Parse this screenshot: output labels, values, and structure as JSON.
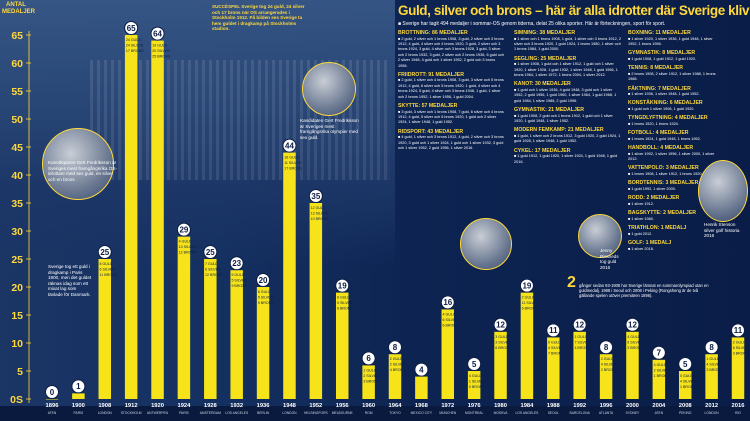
{
  "chart_data": {
    "type": "bar",
    "ylabel": "ANTAL MEDALJER",
    "ylim": [
      0,
      65
    ],
    "yticks": [
      0,
      5,
      10,
      15,
      20,
      25,
      30,
      35,
      40,
      45,
      50,
      55,
      60,
      65
    ],
    "categories": [
      "1896 ATEN",
      "1900 PARIS",
      "1908 LONDON",
      "1912 STOCKHOLM",
      "1920 ANTWERPEN",
      "1924 PARIS",
      "1928 AMSTERDAM",
      "1932 LOS ANGELES",
      "1936 BERLIN",
      "1948 LONDON",
      "1952 HELSINGFORS",
      "1956 MELBOURNE",
      "1960 ROM",
      "1964 TOKYO",
      "1968 MEXICO CITY",
      "1972 MÜNCHEN",
      "1976 MONTREAL",
      "1980 MOSKVA",
      "1984 LOS ANGELES",
      "1988 SEOUL",
      "1992 BARCELONA",
      "1996 ATLANTA",
      "2000 SYDNEY",
      "2004 ATEN",
      "2008 PEKING",
      "2012 LONDON",
      "2016 RIO"
    ],
    "values": [
      0,
      1,
      25,
      65,
      64,
      29,
      25,
      23,
      20,
      44,
      35,
      19,
      6,
      8,
      4,
      16,
      5,
      12,
      19,
      11,
      12,
      8,
      12,
      7,
      5,
      8,
      11
    ],
    "breakdown": [
      "0 GULD 0 SILVER 0 BRONS",
      "0 GULD 0 SILVER 1 BRONS",
      "8 GULD 6 SILVER 11 BRONS",
      "24 GULD 24 SILVER 17 BRONS",
      "19 GULD 20 SILVER 25 BRONS",
      "4 GULD 13 SILVER 12 BRONS",
      "7 GULD 6 SILVER 12 BRONS",
      "9 GULD 5 SILVER 9 BRONS",
      "6 GULD 5 SILVER 9 BRONS",
      "16 GULD 11 SILVER 17 BRONS",
      "12 GULD 13 SILVER 10 BRONS",
      "8 GULD 5 SILVER 6 BRONS",
      "1 GULD 2 SILVER 3 BRONS",
      "2 GULD 2 SILVER 4 BRONS",
      "2 GULD 1 SILVER 1 BRONS",
      "4 GULD 6 SILVER 6 BRONS",
      "4 GULD 1 SILVER 0 BRONS",
      "3 GULD 3 SILVER 6 BRONS",
      "2 GULD 11 SILVER 6 BRONS",
      "0 GULD 4 SILVER 7 BRONS",
      "1 GULD 7 SILVER 4 BRONS",
      "2 GULD 4 SILVER 2 BRONS",
      "4 GULD 5 SILVER 3 BRONS",
      "4 GULD 2 SILVER 1 BRONS",
      "0 GULD 4 SILVER 1 BRONS",
      "1 GULD 4 SILVER 3 BRONS",
      "2 GULD 6 SILVER 3 BRONS"
    ],
    "bar_color": "#f6e31a",
    "grid": false
  },
  "title": "Guld, silver och brons – här är alla idrotter där Sverige klivit upp på pallen genom åren",
  "subtitle": "■ Sverige har tagit 494 medaljer i sommar-OS genom tiderna, delat 25 olika sporter. Här är förteckningen, sport för sport.",
  "captions": {
    "top": "SUCCÉSPEL Sverige tog 24 guld, 24 silver och 17 brons när OS arrangerades i Stockholm 1912. På bilden ses Sverige ta hem guldet i dragkamp på Stockholms stadion.",
    "left1": "Kanotlöparen Gert Fredriksson är Sveriges mest framgångsrika OS-idrottare med sex guld, en silver och en brons.",
    "left2": "Sverige tog ett guld i dragkamp i Paris 1900, men det guldet räknas idag som ett mixat lag som tävlade för Danmark.",
    "mid": "Kandidaten Gert Fredriksson är Sveriges mest framgångsrika olympier med sex guld.",
    "jenny": "Jenny Rissveds tog guld 2016",
    "henrik": "Henrik Stenson silver golf historia 2016"
  },
  "sections_col1": [
    {
      "h": "BROTTNING: 86 MEDALJER",
      "p": "■ 2 guld, 2 silver och 1 brons 1908, 3 guld, 2 silver och 3 brons 1912, 4 guld, 4 silver och 4 brons 1920, 3 guld, 2 silver och 3 brons 1924, 3 guld, 4 silver och 3 brons 1928, 3 guld, 3 silver och 2 brons 1932, 3 guld, 2 silver och 2 brons 1936, 6 guld och 2 silver 1948, 4 guld och 1 silver 1952, 2 guld och 3 brons 1956."
    },
    {
      "h": "FRIIDROTT: 91 MEDALJER",
      "p": "■ 2 guld, 1 silver och 4 brons 1908, 3 guld, 3 silver och 5 brons 1912, 4 guld, 6 silver och 5 brons 1920, 1 guld, 4 silver och 4 brons 1924, 5 guld, 4 silver och 3 brons 1948, 1 guld, 1 silver och 2 brons 1952, 1 silver 1956, 1 guld 2004."
    },
    {
      "h": "SKYTTE: 57 MEDALJER",
      "p": "■ 3 guld, 3 silver och 1 brons 1908, 7 guld, 6 silver och 4 brons 1912, 4 guld, 5 silver och 6 brons 1920, 1 guld och 2 silver 1924, 1 silver 1948, 1 guld 1952."
    },
    {
      "h": "RIDSPORT: 43 MEDALJER",
      "p": "■ 4 guld, 1 silver och 3 brons 1912, 4 guld, 2 silver och 3 brons 1920, 3 guld och 1 silver 1924, 1 guld och 1 silver 1932, 3 guld och 1 silver 1952, 2 guld 1956, 1 silver 2016."
    }
  ],
  "sections_col2": [
    {
      "h": "SIMNING: 38 MEDALJER",
      "p": "■ 1 silver och 1 brons 1908, 1 guld, 1 silver och 3 brons 1912, 2 silver och 3 brons 1920, 1 guld 1924, 1 brons 1980, 1 silver och 1 brons 1984, 1 guld 2000."
    },
    {
      "h": "SEGLING: 25 MEDALJER",
      "p": "■ 1 silver 1908, 1 guld och 1 silver 1912, 1 guld och 1 silver 1920, 1 silver 1928, 1 guld 1932, 1 silver 1948, 1 guld 1956, 1 brons 1964, 1 silver 1972, 1 brons 2004, 1 silver 2012."
    },
    {
      "h": "KANOT: 30 MEDALJER",
      "p": "■ 1 guld och 1 silver 1936, 4 guld 1948, 3 guld och 1 silver 1952, 2 guld 1956, 1 guld 1960, 1 silver 1964, 1 guld 1968, 1 guld 1984, 1 silver 1988, 2 guld 1996."
    },
    {
      "h": "GYMNASTIK: 21 MEDALJER",
      "p": "■ 1 guld 1908, 2 guld och 1 brons 1912, 1 guld och 1 silver 1920, 1 guld 1948, 1 silver 1952."
    },
    {
      "h": "MODERN FEMKAMP: 21 MEDALJER",
      "p": "■ 1 guld, 1 silver och 2 brons 1912, 3 guld 1920, 2 guld 1924, 1 guld 1928, 1 silver 1948, 1 guld 1952."
    },
    {
      "h": "CYKEL: 17 MEDALJER",
      "p": "■ 1 guld 1912, 1 guld 1920, 1 silver 1924, 1 guld 1948, 1 guld 2016."
    }
  ],
  "sections_col3": [
    {
      "h": "BOXNING: 11 MEDALJER",
      "p": "■ 1 silver 1920, 1 silver 1936, 1 guld 1948, 1 silver 1952, 1 brons 1956."
    },
    {
      "h": "GYMNASTIK: 8 MEDALJER",
      "p": "■ 1 guld 1908, 1 guld 1912, 1 guld 1920."
    },
    {
      "h": "TENNIS: 8 MEDALJER",
      "p": "■ 2 brons 1908, 2 silver 1912, 1 silver 1988, 1 brons 1988."
    },
    {
      "h": "FÄKTNING: 7 MEDALJER",
      "p": "■ 1 silver 1936, 1 silver 1948, 1 guld 1952."
    },
    {
      "h": "KONSTÅKNING: 6 MEDALJER",
      "p": "■ 1 guld och 1 silver 1908, 1 guld 1920."
    },
    {
      "h": "TYNGDLYFTNING: 4 MEDALJER",
      "p": "■ 1 brons 1920, 1 brons 1924."
    },
    {
      "h": "FOTBOLL: 4 MEDALJER",
      "p": "■ 1 brons 1924, 1 guld 1948, 1 brons 1952."
    },
    {
      "h": "HANDBOLL: 4 MEDALJER",
      "p": "■ 1 silver 1992, 1 silver 1996, 1 silver 2000, 1 silver 2012."
    },
    {
      "h": "VATTENPOLO: 3 MEDALJER",
      "p": "■ 1 brons 1908, 1 silver 1912, 1 brons 1920."
    },
    {
      "h": "BORDTENNIS: 3 MEDALJER",
      "p": "■ 1 guld 1992, 1 silver 2000."
    },
    {
      "h": "RODD: 2 MEDALJER",
      "p": "■ 1 silver 1912."
    },
    {
      "h": "BAGSKYTTE: 2 MEDALJER",
      "p": "■ 1 silver 1980."
    },
    {
      "h": "TRIATHLON: 1 MEDALJ",
      "p": "■ 1 guld 2012."
    },
    {
      "h": "GOLF: 1 MEDALJ",
      "p": "■ 1 silver 2016."
    }
  ],
  "note_num": "2",
  "note": "gånger sedan 93-1908 har Sverige lämnat en sommarolympiad utan en guldmedalj. 1988 i Seoul och 2008 i Peking (Rongsheng är de två gällande spelen utöver premiären 1896)."
}
